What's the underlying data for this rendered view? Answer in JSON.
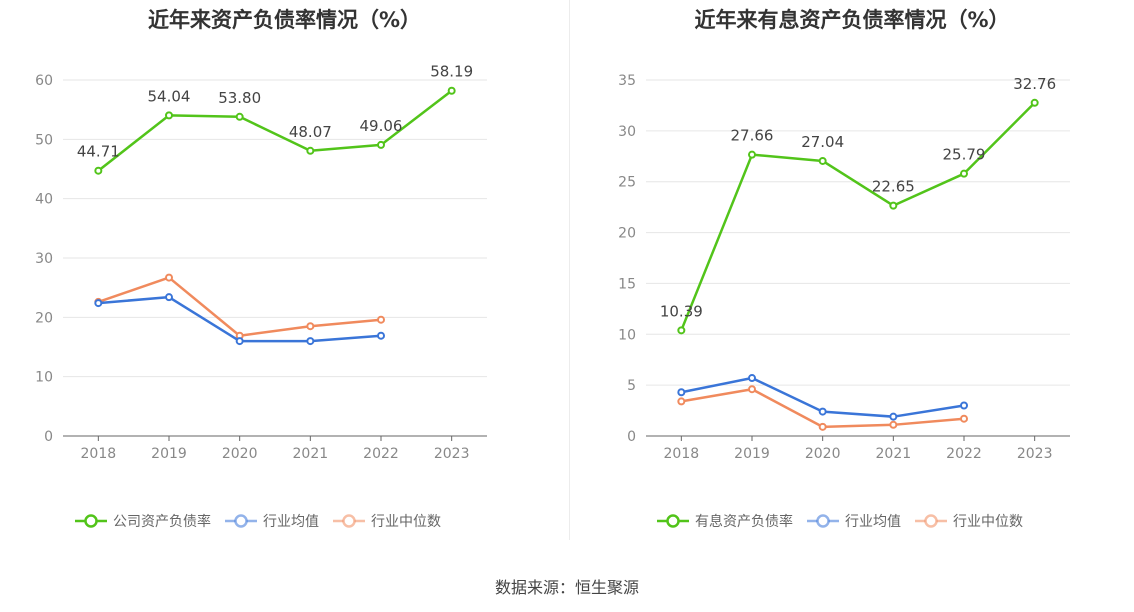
{
  "chart_data": [
    {
      "type": "line",
      "title": "近年来资产负债率情况（%）",
      "categories": [
        "2018",
        "2019",
        "2020",
        "2021",
        "2022",
        "2023"
      ],
      "ylim": [
        0,
        60
      ],
      "yticks": [
        0,
        10,
        20,
        30,
        40,
        50,
        60
      ],
      "grid": true,
      "legend_position": "bottom",
      "series": [
        {
          "name": "公司资产负债率",
          "color": "#52c41a",
          "values": [
            44.71,
            54.04,
            53.8,
            48.07,
            49.06,
            58.19
          ],
          "labels": [
            "44.71",
            "54.04",
            "53.80",
            "48.07",
            "49.06",
            "58.19"
          ]
        },
        {
          "name": "行业均值",
          "color": "#3a75d8",
          "values": [
            22.4,
            23.4,
            16.0,
            16.0,
            16.9,
            null
          ]
        },
        {
          "name": "行业中位数",
          "color": "#f08a5d",
          "values": [
            22.6,
            26.7,
            16.9,
            18.5,
            19.6,
            null
          ]
        }
      ]
    },
    {
      "type": "line",
      "title": "近年来有息资产负债率情况（%）",
      "categories": [
        "2018",
        "2019",
        "2020",
        "2021",
        "2022",
        "2023"
      ],
      "ylim": [
        0,
        35
      ],
      "yticks": [
        0,
        5,
        10,
        15,
        20,
        25,
        30,
        35
      ],
      "grid": true,
      "legend_position": "bottom",
      "series": [
        {
          "name": "有息资产负债率",
          "color": "#52c41a",
          "values": [
            10.39,
            27.66,
            27.04,
            22.65,
            25.79,
            32.76
          ],
          "labels": [
            "10.39",
            "27.66",
            "27.04",
            "22.65",
            "25.79",
            "32.76"
          ]
        },
        {
          "name": "行业均值",
          "color": "#3a75d8",
          "values": [
            4.3,
            5.7,
            2.4,
            1.9,
            3.0,
            null
          ]
        },
        {
          "name": "行业中位数",
          "color": "#f08a5d",
          "values": [
            3.4,
            4.6,
            0.9,
            1.1,
            1.7,
            null
          ]
        }
      ]
    }
  ],
  "source": "数据来源：恒生聚源"
}
